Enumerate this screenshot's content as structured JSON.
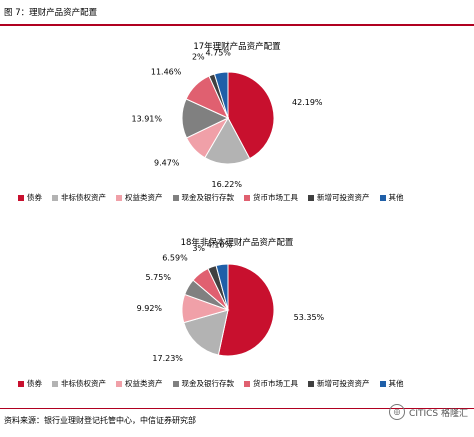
{
  "figure_title": "图 7：理财产品资产配置",
  "source": "资料来源：银行业理财登记托管中心，中信证券研究部",
  "watermark": "CITICS 格隆汇",
  "colors": {
    "rule": "#b00020",
    "series": [
      "#c8102e",
      "#b3b3b3",
      "#f0a0a8",
      "#808080",
      "#e06070",
      "#404040",
      "#1f5fa8"
    ]
  },
  "chart_data": [
    {
      "type": "pie",
      "title": "17年理财产品资产配置",
      "categories": [
        "债券",
        "非标债权资产",
        "权益类资产",
        "现金及银行存款",
        "货币市场工具",
        "新增可投资资产",
        "其他"
      ],
      "values": [
        42.19,
        16.22,
        9.47,
        13.91,
        11.46,
        2,
        4.75
      ],
      "labels": [
        "42.19%",
        "16.22%",
        "9.47%",
        "13.91%",
        "11.46%",
        "2%",
        "4.75%"
      ],
      "legend_position": "bottom"
    },
    {
      "type": "pie",
      "title": "18年非保本理财产品资产配置",
      "categories": [
        "债券",
        "非标债权资产",
        "权益类资产",
        "现金及银行存款",
        "货币市场工具",
        "新增可投资资产",
        "其他"
      ],
      "values": [
        53.35,
        17.23,
        9.92,
        5.75,
        6.59,
        3,
        4.16
      ],
      "labels": [
        "53.35%",
        "17.23%",
        "9.92%",
        "5.75%",
        "6.59%",
        "3%",
        "4.16%"
      ],
      "legend_position": "bottom"
    }
  ]
}
